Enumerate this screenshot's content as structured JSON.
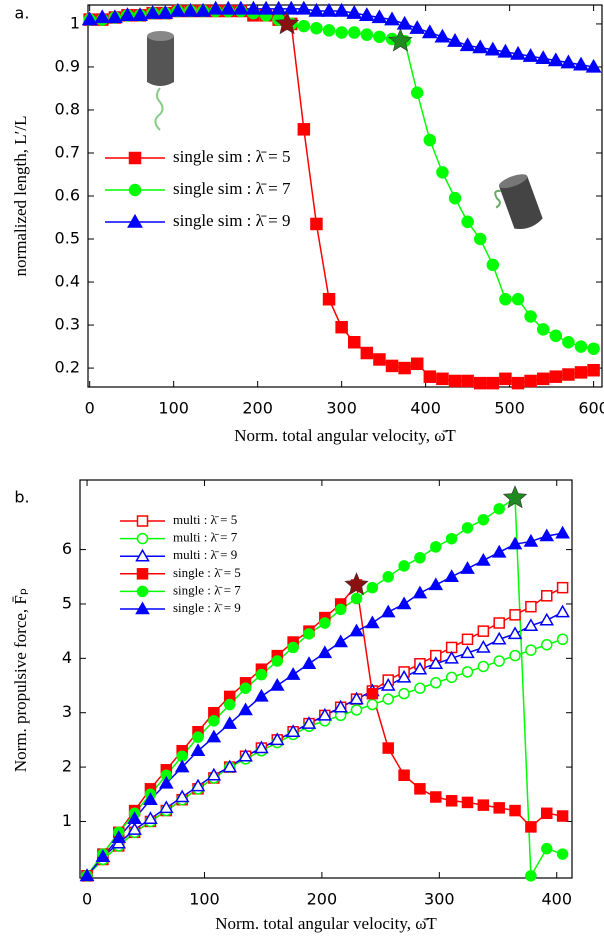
{
  "chart_data": [
    {
      "type": "line",
      "panel_label": "a.",
      "xlabel": "Norm. total angular velocity, ω̄T",
      "ylabel": "normalized length, L′/L",
      "xlim": [
        -2,
        610
      ],
      "ylim": [
        0.156,
        1.044
      ],
      "xticks": [
        0,
        100,
        200,
        300,
        400,
        500,
        600
      ],
      "yticks": [
        0.2,
        0.3,
        0.4,
        0.5,
        0.6,
        0.7,
        0.8,
        0.9,
        1
      ],
      "legend": "center left",
      "x": [
        0,
        15,
        30,
        45,
        60,
        75,
        90,
        105,
        120,
        135,
        150,
        165,
        180,
        195,
        210,
        225,
        240,
        255,
        270,
        285,
        300,
        315,
        330,
        345,
        360,
        375,
        390,
        405,
        420,
        435,
        450,
        465,
        480,
        495,
        510,
        525,
        540,
        555,
        570,
        585,
        600
      ],
      "series": [
        {
          "name": "single sim : λ̄ = 5",
          "color": "#ff0000",
          "marker": "square",
          "fill": "filled",
          "values": [
            1.01,
            1.01,
            1.015,
            1.02,
            1.02,
            1.025,
            1.025,
            1.03,
            1.03,
            1.03,
            1.03,
            1.03,
            1.03,
            1.02,
            1.02,
            1.01,
            1.0,
            0.755,
            0.535,
            0.36,
            0.295,
            0.26,
            0.235,
            0.22,
            0.205,
            0.2,
            0.21,
            0.18,
            0.175,
            0.17,
            0.17,
            0.165,
            0.165,
            0.175,
            0.165,
            0.17,
            0.175,
            0.18,
            0.185,
            0.19,
            0.195
          ]
        },
        {
          "name": "single sim : λ̄ = 7",
          "color": "#00ff00",
          "marker": "circle",
          "fill": "filled",
          "values": [
            1.01,
            1.01,
            1.015,
            1.02,
            1.02,
            1.025,
            1.025,
            1.03,
            1.03,
            1.03,
            1.03,
            1.03,
            1.03,
            1.025,
            1.02,
            1.01,
            1.0,
            0.995,
            0.99,
            0.985,
            0.98,
            0.98,
            0.975,
            0.97,
            0.965,
            0.96,
            0.84,
            0.73,
            0.655,
            0.595,
            0.54,
            0.5,
            0.44,
            0.36,
            0.36,
            0.32,
            0.29,
            0.275,
            0.26,
            0.25,
            0.245
          ]
        },
        {
          "name": "single sim : λ̄ = 9",
          "color": "#0000ff",
          "marker": "triangle",
          "fill": "filled",
          "values": [
            1.01,
            1.015,
            1.015,
            1.02,
            1.02,
            1.025,
            1.025,
            1.03,
            1.03,
            1.03,
            1.035,
            1.035,
            1.035,
            1.035,
            1.035,
            1.035,
            1.035,
            1.035,
            1.03,
            1.03,
            1.03,
            1.025,
            1.02,
            1.015,
            1.01,
            1.0,
            0.99,
            0.98,
            0.97,
            0.96,
            0.95,
            0.945,
            0.94,
            0.935,
            0.93,
            0.925,
            0.92,
            0.915,
            0.91,
            0.905,
            0.9
          ]
        }
      ],
      "stars": [
        {
          "x": 235,
          "y": 1.0,
          "color": "#8b1010"
        },
        {
          "x": 370,
          "y": 0.96,
          "color": "#1f8a1f"
        }
      ]
    },
    {
      "type": "line",
      "panel_label": "b.",
      "xlabel": "Norm. total angular velocity, ω̄T",
      "ylabel": "Norm. propulsive force, F̄ₚ",
      "xlim": [
        -6,
        413
      ],
      "ylim": [
        -0.04,
        7.28
      ],
      "xticks": [
        0,
        100,
        200,
        300,
        400
      ],
      "yticks": [
        1,
        2,
        3,
        4,
        5,
        6
      ],
      "legend": "upper left",
      "x": [
        0,
        13.5,
        27,
        40.5,
        54,
        67.5,
        81,
        94.5,
        108,
        121.5,
        135,
        148.5,
        162,
        175.5,
        189,
        202.5,
        216,
        229.5,
        243,
        256.5,
        270,
        283.5,
        297,
        310.5,
        324,
        337.5,
        351,
        364.5,
        378,
        391.5,
        405
      ],
      "series": [
        {
          "name": "multi : λ̄ = 5",
          "color": "#ff0000",
          "marker": "square",
          "fill": "open",
          "values": [
            0,
            0.3,
            0.55,
            0.8,
            1.0,
            1.2,
            1.4,
            1.6,
            1.8,
            2.0,
            2.2,
            2.35,
            2.5,
            2.65,
            2.8,
            2.95,
            3.1,
            3.25,
            3.4,
            3.6,
            3.75,
            3.9,
            4.05,
            4.2,
            4.35,
            4.5,
            4.65,
            4.8,
            4.95,
            5.15,
            5.3
          ]
        },
        {
          "name": "multi : λ̄ = 7",
          "color": "#00ff00",
          "marker": "circle",
          "fill": "open",
          "values": [
            0,
            0.3,
            0.55,
            0.8,
            1.0,
            1.2,
            1.4,
            1.6,
            1.8,
            2.0,
            2.15,
            2.3,
            2.45,
            2.6,
            2.75,
            2.85,
            2.95,
            3.05,
            3.15,
            3.25,
            3.35,
            3.45,
            3.55,
            3.65,
            3.75,
            3.85,
            3.95,
            4.05,
            4.15,
            4.25,
            4.35
          ]
        },
        {
          "name": "multi : λ̄ = 9",
          "color": "#0000ff",
          "marker": "triangle",
          "fill": "open",
          "values": [
            0,
            0.35,
            0.6,
            0.85,
            1.05,
            1.25,
            1.45,
            1.65,
            1.85,
            2.0,
            2.2,
            2.35,
            2.5,
            2.65,
            2.8,
            2.95,
            3.1,
            3.25,
            3.4,
            3.5,
            3.65,
            3.8,
            3.9,
            4.0,
            4.1,
            4.2,
            4.35,
            4.45,
            4.6,
            4.7,
            4.85
          ]
        },
        {
          "name": "single : λ̄ = 5",
          "color": "#ff0000",
          "marker": "square",
          "fill": "filled",
          "values": [
            0,
            0.4,
            0.8,
            1.2,
            1.6,
            1.95,
            2.3,
            2.65,
            3.0,
            3.3,
            3.55,
            3.8,
            4.05,
            4.3,
            4.5,
            4.75,
            5.0,
            5.35,
            3.35,
            2.35,
            1.85,
            1.6,
            1.45,
            1.38,
            1.35,
            1.3,
            1.25,
            1.2,
            0.9,
            1.15,
            1.1
          ]
        },
        {
          "name": "single : λ̄ = 7",
          "color": "#00ff00",
          "marker": "circle",
          "fill": "filled",
          "values": [
            0,
            0.4,
            0.8,
            1.15,
            1.5,
            1.85,
            2.2,
            2.55,
            2.85,
            3.15,
            3.45,
            3.7,
            3.95,
            4.2,
            4.45,
            4.65,
            4.9,
            5.1,
            5.3,
            5.5,
            5.7,
            5.85,
            6.05,
            6.2,
            6.4,
            6.55,
            6.75,
            6.95,
            0,
            0.5,
            0.4
          ]
        },
        {
          "name": "single : λ̄ = 9",
          "color": "#0000ff",
          "marker": "triangle",
          "fill": "filled",
          "values": [
            0,
            0.35,
            0.7,
            1.05,
            1.4,
            1.7,
            2.0,
            2.3,
            2.55,
            2.8,
            3.05,
            3.3,
            3.5,
            3.7,
            3.9,
            4.1,
            4.3,
            4.5,
            4.65,
            4.85,
            5.0,
            5.2,
            5.35,
            5.5,
            5.65,
            5.8,
            5.95,
            6.1,
            6.15,
            6.25,
            6.3
          ]
        }
      ],
      "stars": [
        {
          "x": 229.5,
          "y": 5.35,
          "color": "#8b1010"
        },
        {
          "x": 364.5,
          "y": 6.95,
          "color": "#1f8a1f"
        }
      ]
    }
  ]
}
